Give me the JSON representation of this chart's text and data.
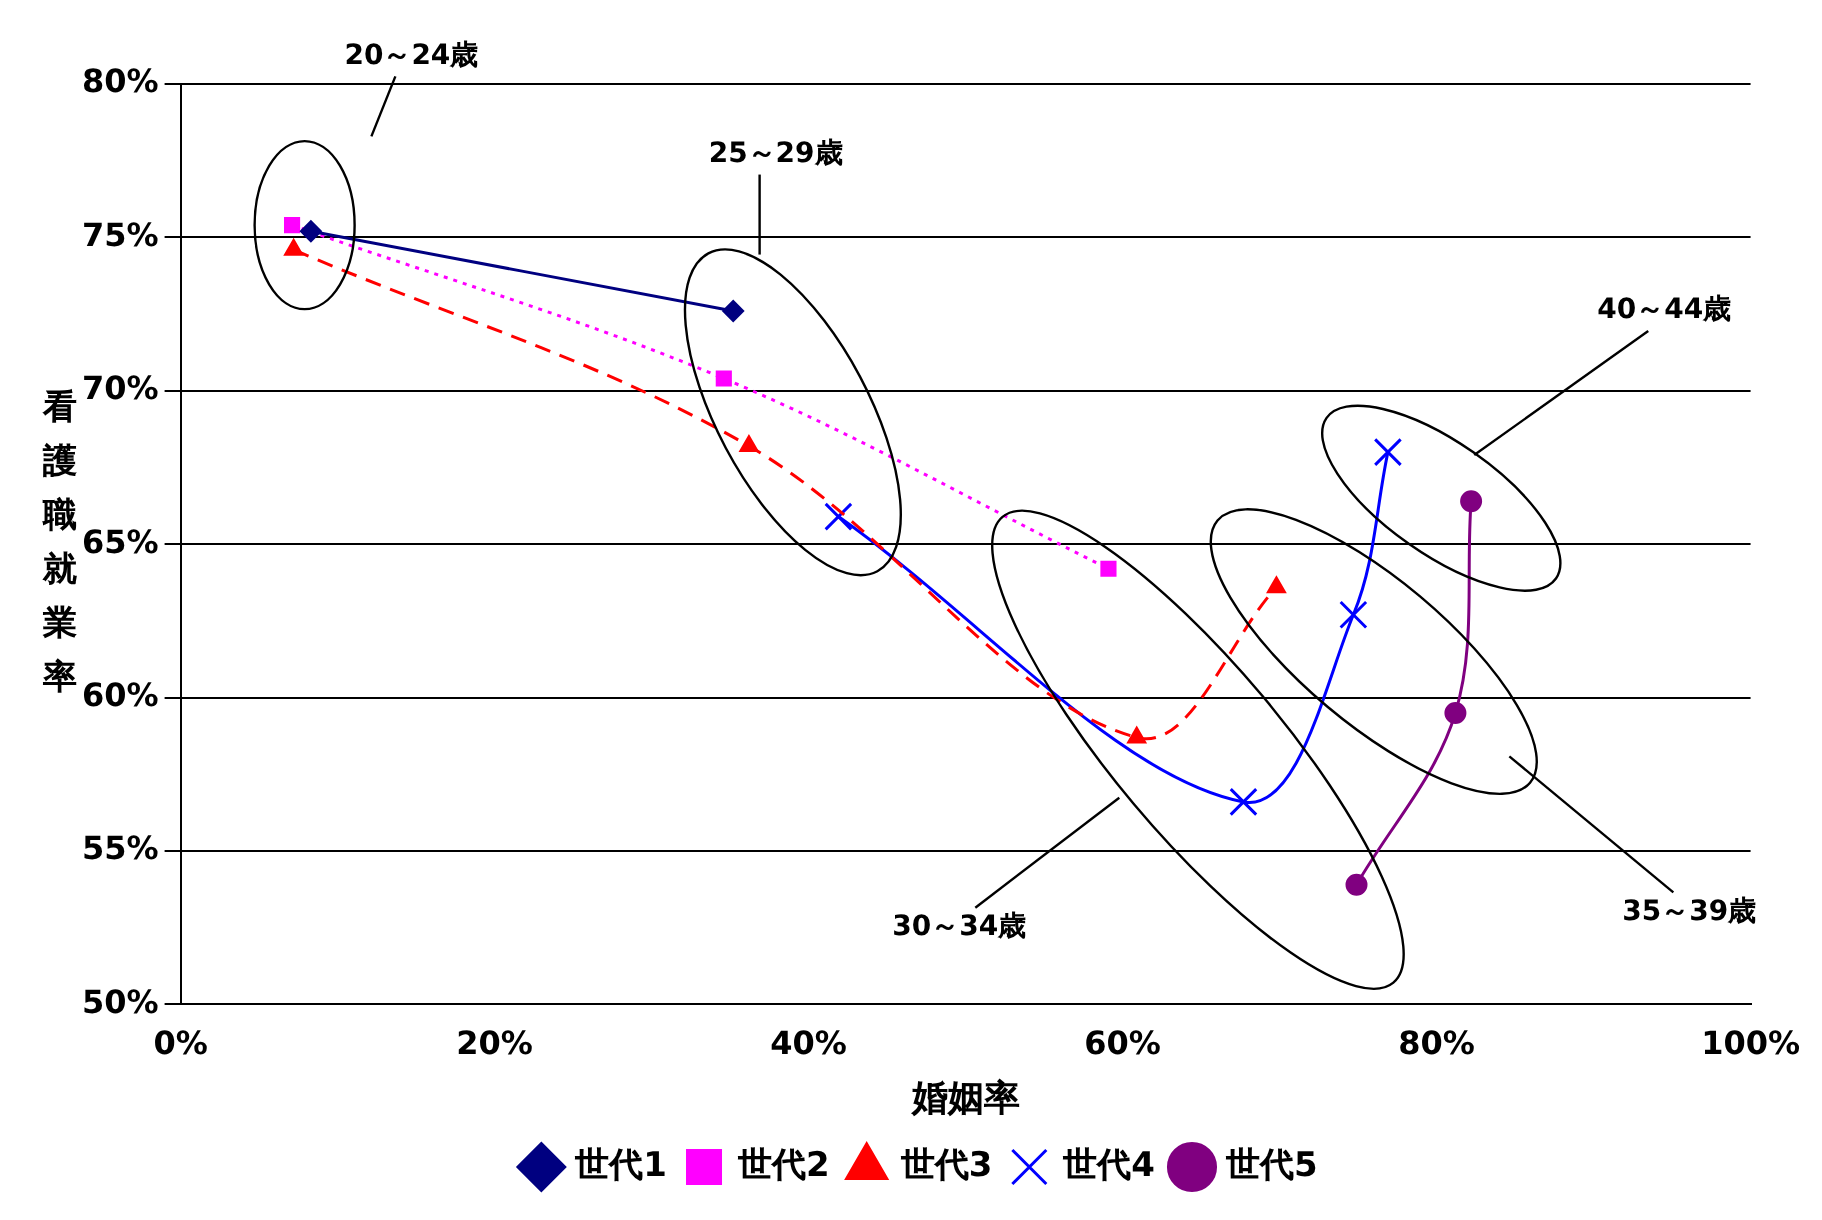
{
  "chart_data": {
    "type": "line",
    "xlabel": "婚姻率",
    "ylabel": "看護職就業率",
    "xlim": [
      0,
      100
    ],
    "xticks": [
      {
        "value": 0,
        "label": "0%"
      },
      {
        "value": 20,
        "label": "20%"
      },
      {
        "value": 40,
        "label": "40%"
      },
      {
        "value": 60,
        "label": "60%"
      },
      {
        "value": 80,
        "label": "80%"
      },
      {
        "value": 100,
        "label": "100%"
      }
    ],
    "ylim": [
      50,
      80
    ],
    "yticks": [
      {
        "value": 50,
        "label": "50%"
      },
      {
        "value": 55,
        "label": "55%"
      },
      {
        "value": 60,
        "label": "60%"
      },
      {
        "value": 65,
        "label": "65%"
      },
      {
        "value": 70,
        "label": "70%"
      },
      {
        "value": 75,
        "label": "75%"
      },
      {
        "value": 80,
        "label": "80%"
      }
    ],
    "grid": "y",
    "legend": "bottom",
    "series": [
      {
        "name": "世代1",
        "color": "#000080",
        "marker": "diamond",
        "line_style": "solid",
        "x": [
          8.3,
          35.2
        ],
        "values": [
          75.2,
          72.6
        ]
      },
      {
        "name": "世代2",
        "color": "#ff00ff",
        "marker": "square",
        "line_style": "dotted",
        "x": [
          7.1,
          34.6,
          59.1
        ],
        "values": [
          75.4,
          70.4,
          64.2
        ]
      },
      {
        "name": "世代3",
        "color": "#ff0000",
        "marker": "triangle",
        "line_style": "dashed",
        "x": [
          7.2,
          36.2,
          60.9,
          69.8
        ],
        "values": [
          74.6,
          68.2,
          58.7,
          63.6
        ]
      },
      {
        "name": "世代4",
        "color": "#0000ff",
        "marker": "cross",
        "line_style": "solid",
        "x": [
          41.9,
          67.7,
          74.7,
          76.9
        ],
        "values": [
          65.9,
          56.6,
          62.7,
          68.0
        ]
      },
      {
        "name": "世代5",
        "color": "#800080",
        "marker": "circle",
        "line_style": "solid",
        "x": [
          74.9,
          81.2,
          82.2
        ],
        "values": [
          53.9,
          59.5,
          66.4
        ]
      }
    ],
    "annotations": [
      "20～24歳",
      "25～29歳",
      "40～44歳",
      "35～39歳",
      "30～34歳"
    ]
  }
}
